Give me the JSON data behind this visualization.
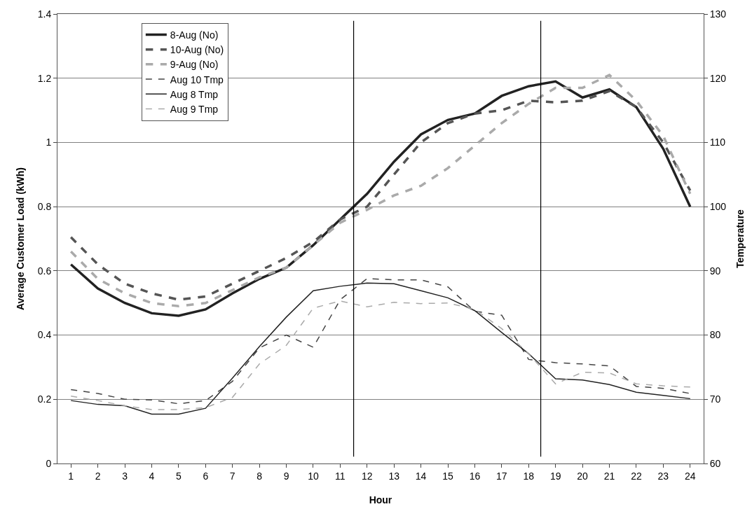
{
  "chart_data": {
    "type": "line",
    "xlabel": "Hour",
    "ylabel": "Average Customer Load (kWh)",
    "y2label": "Temperature",
    "x": [
      1,
      2,
      3,
      4,
      5,
      6,
      7,
      8,
      9,
      10,
      11,
      12,
      13,
      14,
      15,
      16,
      17,
      18,
      19,
      20,
      21,
      22,
      23,
      24
    ],
    "xlim": [
      0.5,
      24.5
    ],
    "xticks": [
      1,
      2,
      3,
      4,
      5,
      6,
      7,
      8,
      9,
      10,
      11,
      12,
      13,
      14,
      15,
      16,
      17,
      18,
      19,
      20,
      21,
      22,
      23,
      24
    ],
    "ylim": [
      0,
      1.4
    ],
    "yticks": [
      0,
      0.2,
      0.4,
      0.6,
      0.8,
      1,
      1.2,
      1.4
    ],
    "y2lim": [
      60,
      130
    ],
    "y2ticks": [
      60,
      70,
      80,
      90,
      100,
      110,
      120,
      130
    ],
    "grid": "y",
    "legend": "top left",
    "marker": "none",
    "ref_lines": [
      {
        "axis": "x",
        "value": 11.5,
        "color": "#000000"
      },
      {
        "axis": "x",
        "value": 18.45,
        "color": "#000000"
      }
    ],
    "series": [
      {
        "name": "8-Aug (No)",
        "color": "#222222",
        "line_style": "solid",
        "values": [
          0.62,
          0.545,
          0.5,
          0.468,
          0.46,
          0.48,
          0.53,
          0.575,
          0.61,
          0.68,
          0.76,
          0.84,
          0.94,
          1.025,
          1.07,
          1.09,
          1.145,
          1.175,
          1.19,
          1.14,
          1.165,
          1.11,
          0.98,
          0.8
        ]
      },
      {
        "name": "10-Aug (No)",
        "color": "#555555",
        "line_style": "dashed",
        "values": [
          0.705,
          0.62,
          0.56,
          0.53,
          0.51,
          0.52,
          0.56,
          0.6,
          0.64,
          0.69,
          0.76,
          0.8,
          0.9,
          1.0,
          1.06,
          1.09,
          1.1,
          1.13,
          1.125,
          1.13,
          1.16,
          1.11,
          1.0,
          0.85
        ]
      },
      {
        "name": "9-Aug (No)",
        "color": "#aaaaaa",
        "line_style": "dashed",
        "values": [
          0.66,
          0.575,
          0.53,
          0.5,
          0.49,
          0.5,
          0.54,
          0.58,
          0.61,
          0.68,
          0.75,
          0.79,
          0.835,
          0.865,
          0.92,
          0.99,
          1.06,
          1.12,
          1.17,
          1.17,
          1.21,
          1.13,
          1.02,
          0.84
        ]
      },
      {
        "name": "Aug 10 Tmp",
        "color": "#444444",
        "line_style": "dashed",
        "axis": "y2",
        "values": [
          71.5,
          70.9,
          70,
          69.9,
          69.3,
          69.8,
          72.8,
          78,
          80,
          78.1,
          85.5,
          88.8,
          88.6,
          88.6,
          87.5,
          83.7,
          83.1,
          76.2,
          75.7,
          75.5,
          75.2,
          72,
          71.7,
          70.9
        ]
      },
      {
        "name": "Aug 8 Tmp",
        "color": "#222222",
        "line_style": "solid",
        "axis": "y2",
        "values": [
          69.8,
          69.2,
          69,
          67.7,
          67.7,
          68.6,
          73.3,
          78.2,
          82.8,
          86.9,
          87.6,
          88.1,
          88,
          86.9,
          85.8,
          83.8,
          80.4,
          77.1,
          73.2,
          73,
          72.3,
          71.1,
          70.6,
          70.1
        ]
      },
      {
        "name": "Aug 9 Tmp",
        "color": "#aaaaaa",
        "line_style": "dashed",
        "axis": "y2",
        "values": [
          70.5,
          69.8,
          69,
          68.4,
          68.4,
          68.7,
          70.3,
          75.5,
          78.4,
          84.2,
          85.3,
          84.4,
          85.1,
          84.9,
          85,
          84,
          81,
          77.1,
          72.4,
          74.2,
          74.1,
          72.4,
          72.1,
          71.9
        ]
      }
    ]
  }
}
